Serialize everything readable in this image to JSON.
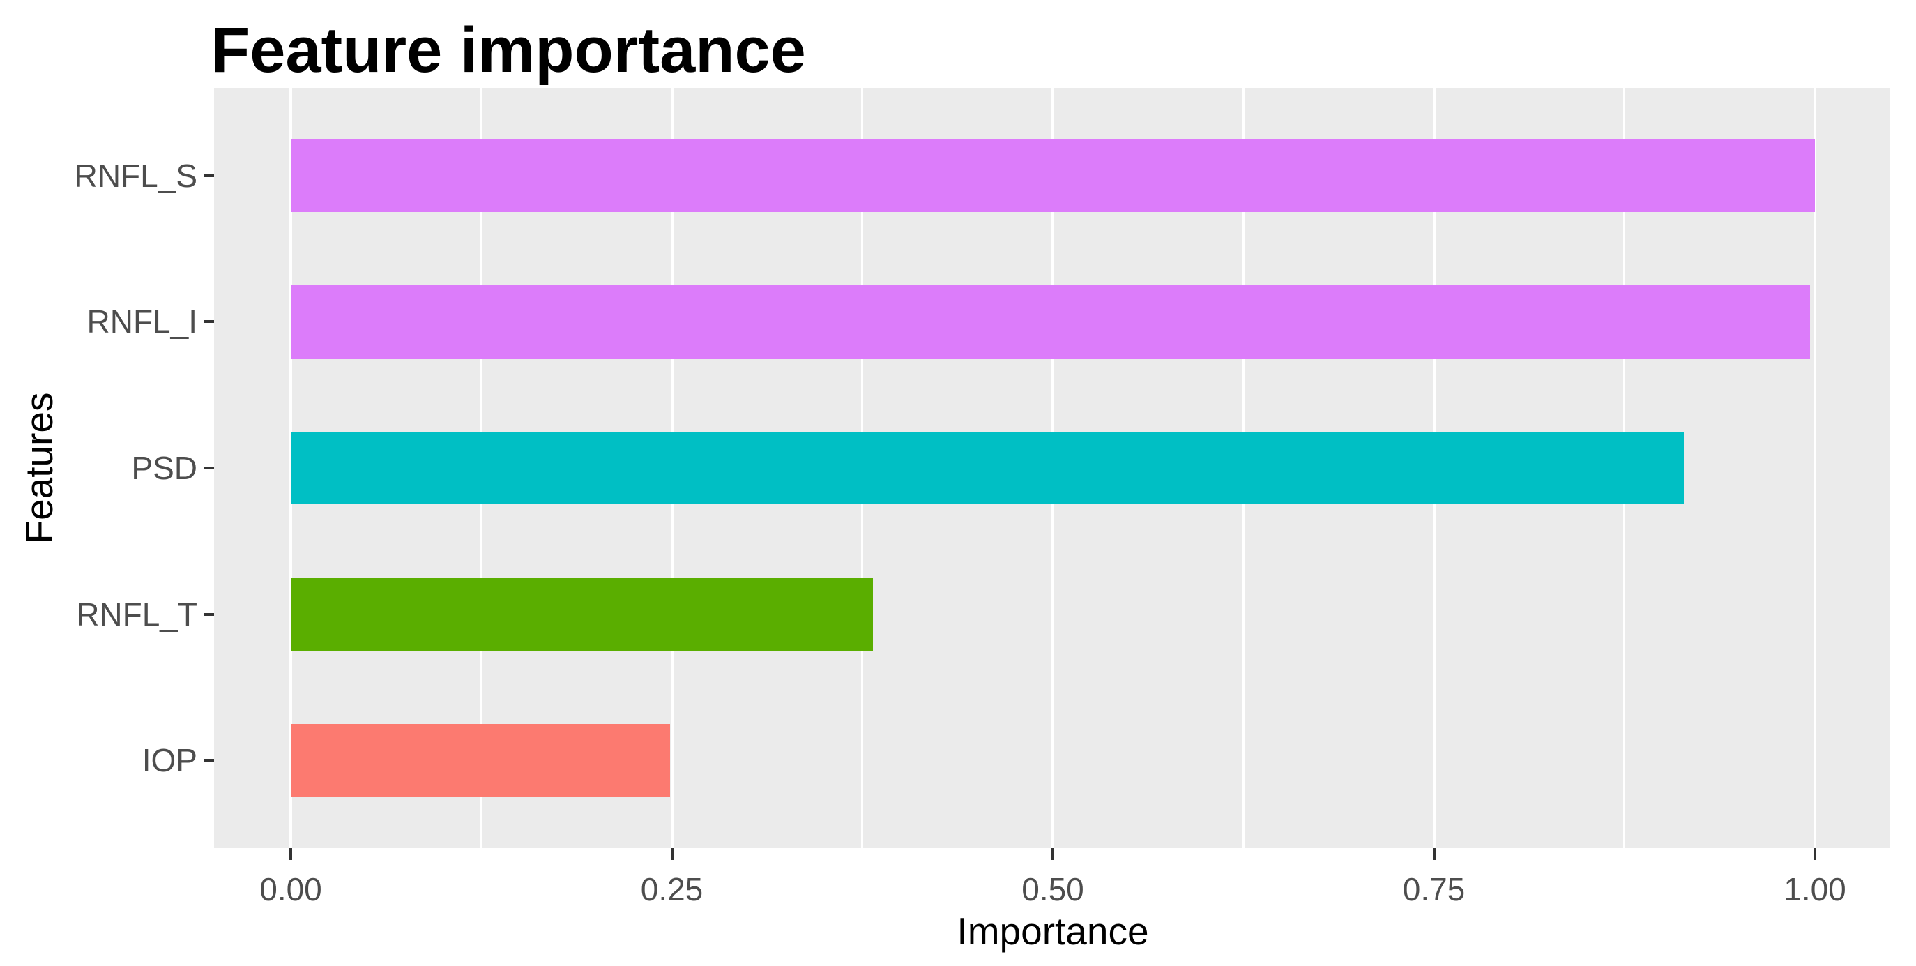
{
  "chart_data": {
    "type": "bar",
    "orientation": "horizontal",
    "title": "Feature importance",
    "xlabel": "Importance",
    "ylabel": "Features",
    "categories": [
      "RNFL_S",
      "RNFL_I",
      "PSD",
      "RNFL_T",
      "IOP"
    ],
    "values": [
      1.0,
      0.997,
      0.914,
      0.382,
      0.249
    ],
    "bar_colors": [
      "#DC7CFA",
      "#DC7CFA",
      "#00BFC4",
      "#5AAE00",
      "#FC7A70"
    ],
    "xlim": [
      0,
      1.0
    ],
    "x_ticks": [
      0,
      0.25,
      0.5,
      0.75,
      1.0
    ],
    "x_tick_labels": [
      "0.00",
      "0.25",
      "0.50",
      "0.75",
      "1.00"
    ],
    "x_minor_gridlines": [
      0.125,
      0.375,
      0.625,
      0.875
    ],
    "legend_position": "none",
    "grid": "vertical major and minor, white on gray panel",
    "panel_bg": "#EBEBEB",
    "grid_color": "#FFFFFF",
    "tick_label_color": "#4D4D4D",
    "axis_title_color": "#000000",
    "title_color": "#000000",
    "tick_mark_color": "#333333"
  }
}
